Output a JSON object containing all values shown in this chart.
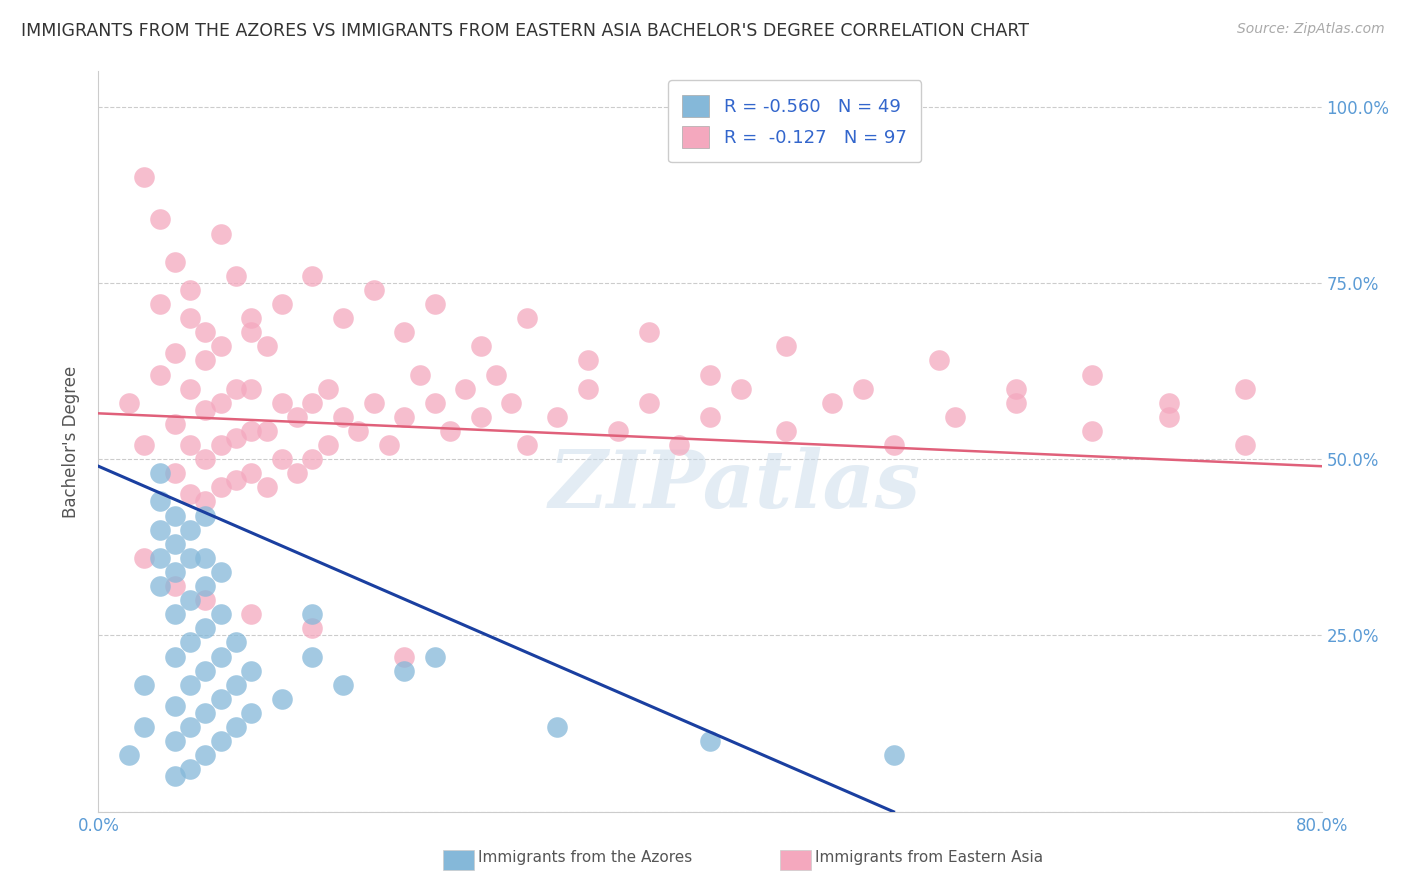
{
  "title": "IMMIGRANTS FROM THE AZORES VS IMMIGRANTS FROM EASTERN ASIA BACHELOR'S DEGREE CORRELATION CHART",
  "source": "Source: ZipAtlas.com",
  "watermark": "ZIPatlas",
  "blue_color": "#85b8d9",
  "pink_color": "#f4a8be",
  "blue_line_color": "#1a3fa0",
  "pink_line_color": "#e0607a",
  "title_color": "#333333",
  "axis_tick_color": "#5b9bd5",
  "grid_color": "#cccccc",
  "xlim": [
    0.0,
    0.08
  ],
  "ylim": [
    0.0,
    1.05
  ],
  "xtick_positions": [
    0.0,
    0.01,
    0.02,
    0.03,
    0.04,
    0.05,
    0.06,
    0.07,
    0.08
  ],
  "ytick_positions": [
    0.0,
    0.25,
    0.5,
    0.75,
    1.0
  ],
  "azores_x": [
    0.002,
    0.003,
    0.003,
    0.004,
    0.004,
    0.004,
    0.004,
    0.004,
    0.005,
    0.005,
    0.005,
    0.005,
    0.005,
    0.005,
    0.005,
    0.005,
    0.006,
    0.006,
    0.006,
    0.006,
    0.006,
    0.006,
    0.006,
    0.007,
    0.007,
    0.007,
    0.007,
    0.007,
    0.007,
    0.007,
    0.008,
    0.008,
    0.008,
    0.008,
    0.008,
    0.009,
    0.009,
    0.009,
    0.01,
    0.01,
    0.012,
    0.014,
    0.014,
    0.016,
    0.02,
    0.022,
    0.03,
    0.04,
    0.052
  ],
  "azores_y": [
    0.08,
    0.12,
    0.18,
    0.32,
    0.36,
    0.4,
    0.44,
    0.48,
    0.05,
    0.1,
    0.15,
    0.22,
    0.28,
    0.34,
    0.38,
    0.42,
    0.06,
    0.12,
    0.18,
    0.24,
    0.3,
    0.36,
    0.4,
    0.08,
    0.14,
    0.2,
    0.26,
    0.32,
    0.36,
    0.42,
    0.1,
    0.16,
    0.22,
    0.28,
    0.34,
    0.12,
    0.18,
    0.24,
    0.14,
    0.2,
    0.16,
    0.22,
    0.28,
    0.18,
    0.2,
    0.22,
    0.12,
    0.1,
    0.08
  ],
  "eastern_asia_x": [
    0.002,
    0.003,
    0.004,
    0.004,
    0.005,
    0.005,
    0.005,
    0.006,
    0.006,
    0.006,
    0.006,
    0.007,
    0.007,
    0.007,
    0.007,
    0.008,
    0.008,
    0.008,
    0.008,
    0.009,
    0.009,
    0.009,
    0.01,
    0.01,
    0.01,
    0.01,
    0.011,
    0.011,
    0.012,
    0.012,
    0.013,
    0.013,
    0.014,
    0.014,
    0.015,
    0.015,
    0.016,
    0.017,
    0.018,
    0.019,
    0.02,
    0.021,
    0.022,
    0.023,
    0.024,
    0.025,
    0.026,
    0.027,
    0.028,
    0.03,
    0.032,
    0.034,
    0.036,
    0.038,
    0.04,
    0.042,
    0.045,
    0.048,
    0.052,
    0.056,
    0.06,
    0.065,
    0.07,
    0.075,
    0.003,
    0.004,
    0.005,
    0.006,
    0.007,
    0.008,
    0.009,
    0.01,
    0.011,
    0.012,
    0.014,
    0.016,
    0.018,
    0.02,
    0.022,
    0.025,
    0.028,
    0.032,
    0.036,
    0.04,
    0.045,
    0.05,
    0.055,
    0.06,
    0.065,
    0.07,
    0.075,
    0.003,
    0.005,
    0.007,
    0.01,
    0.014,
    0.02
  ],
  "eastern_asia_y": [
    0.58,
    0.52,
    0.62,
    0.72,
    0.48,
    0.55,
    0.65,
    0.45,
    0.52,
    0.6,
    0.7,
    0.44,
    0.5,
    0.57,
    0.64,
    0.46,
    0.52,
    0.58,
    0.66,
    0.47,
    0.53,
    0.6,
    0.48,
    0.54,
    0.6,
    0.68,
    0.46,
    0.54,
    0.5,
    0.58,
    0.48,
    0.56,
    0.5,
    0.58,
    0.52,
    0.6,
    0.56,
    0.54,
    0.58,
    0.52,
    0.56,
    0.62,
    0.58,
    0.54,
    0.6,
    0.56,
    0.62,
    0.58,
    0.52,
    0.56,
    0.6,
    0.54,
    0.58,
    0.52,
    0.56,
    0.6,
    0.54,
    0.58,
    0.52,
    0.56,
    0.6,
    0.54,
    0.58,
    0.52,
    0.9,
    0.84,
    0.78,
    0.74,
    0.68,
    0.82,
    0.76,
    0.7,
    0.66,
    0.72,
    0.76,
    0.7,
    0.74,
    0.68,
    0.72,
    0.66,
    0.7,
    0.64,
    0.68,
    0.62,
    0.66,
    0.6,
    0.64,
    0.58,
    0.62,
    0.56,
    0.6,
    0.36,
    0.32,
    0.3,
    0.28,
    0.26,
    0.22
  ],
  "pink_line_x0": 0.0,
  "pink_line_x1": 0.08,
  "pink_line_y0": 0.565,
  "pink_line_y1": 0.49,
  "blue_line_x0": 0.0,
  "blue_line_x1": 0.052,
  "blue_line_y0": 0.49,
  "blue_line_y1": 0.0
}
